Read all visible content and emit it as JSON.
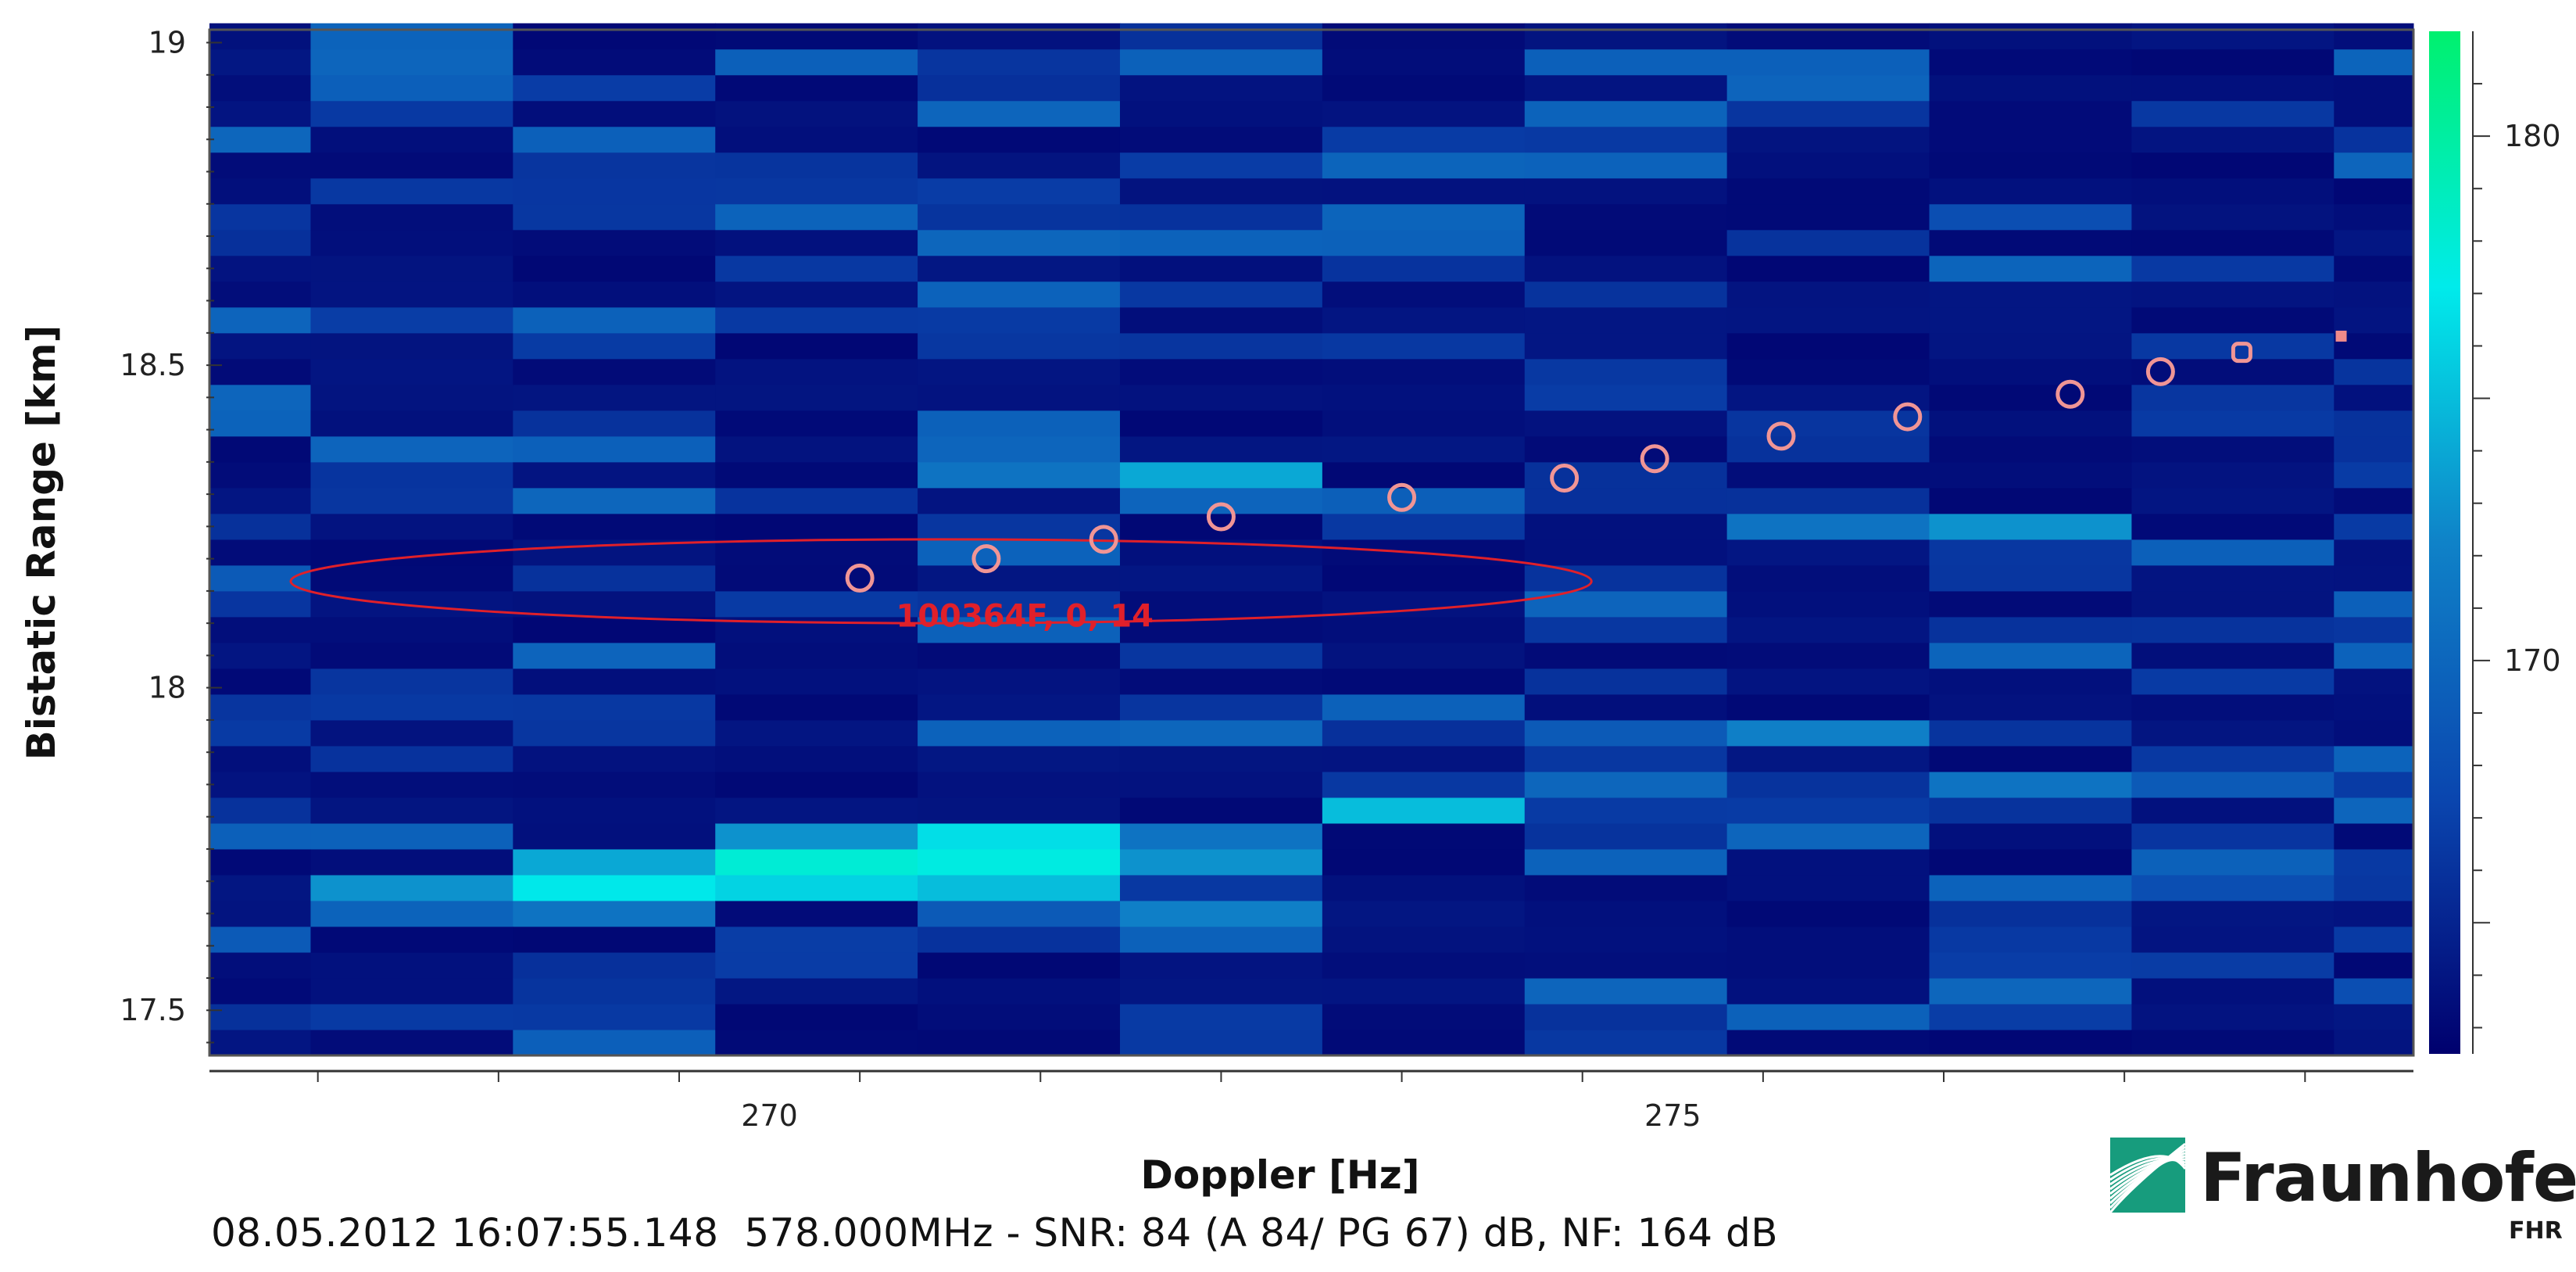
{
  "chart_data": {
    "type": "heatmap",
    "xlabel": "Doppler [Hz]",
    "ylabel": "Bistatic Range [km]",
    "xlim": [
      266.9,
      279.1
    ],
    "ylim": [
      17.43,
      19.02
    ],
    "x_ticks": [
      270,
      275
    ],
    "y_ticks": [
      17.5,
      18,
      18.5,
      19
    ],
    "colorbar": {
      "range": [
        162.5,
        182
      ],
      "ticks": [
        170,
        180
      ]
    },
    "heatmap": {
      "x_edges": [
        266.9,
        267.46,
        268.58,
        269.7,
        270.82,
        271.94,
        273.06,
        274.18,
        275.3,
        276.42,
        277.54,
        278.66,
        279.1
      ],
      "y_bin_km": 0.04,
      "y_start": 17.43,
      "row_count": 40,
      "base_level": 163,
      "hot_cells": [
        {
          "col": 3,
          "row": 7,
          "level": 178
        },
        {
          "col": 4,
          "row": 7,
          "level": 177.5
        },
        {
          "col": 3,
          "row": 6,
          "level": 176
        },
        {
          "col": 4,
          "row": 6,
          "level": 175
        },
        {
          "col": 4,
          "row": 8,
          "level": 176.5
        },
        {
          "col": 5,
          "row": 7,
          "level": 173
        },
        {
          "col": 2,
          "row": 6,
          "level": 177
        },
        {
          "col": 2,
          "row": 7,
          "level": 174
        },
        {
          "col": 1,
          "row": 6,
          "level": 173
        },
        {
          "col": 3,
          "row": 8,
          "level": 173
        },
        {
          "col": 5,
          "row": 8,
          "level": 171
        },
        {
          "col": 6,
          "row": 9,
          "level": 175
        },
        {
          "col": 2,
          "row": 5,
          "level": 171
        },
        {
          "col": 5,
          "row": 5,
          "level": 172
        },
        {
          "col": 4,
          "row": 5,
          "level": 169
        },
        {
          "col": 5,
          "row": 22,
          "level": 174
        },
        {
          "col": 4,
          "row": 22,
          "level": 171
        },
        {
          "col": 8,
          "row": 20,
          "level": 171
        },
        {
          "col": 9,
          "row": 20,
          "level": 173
        },
        {
          "col": 8,
          "row": 12,
          "level": 172
        },
        {
          "col": 9,
          "row": 10,
          "level": 171
        },
        {
          "col": 7,
          "row": 10,
          "level": 170
        },
        {
          "col": 7,
          "row": 12,
          "level": 169
        },
        {
          "col": 10,
          "row": 10,
          "level": 169
        },
        {
          "col": 9,
          "row": 32,
          "level": 168
        },
        {
          "col": 10,
          "row": 6,
          "level": 168
        },
        {
          "col": 11,
          "row": 2,
          "level": 168
        },
        {
          "col": 0,
          "row": 18,
          "level": 169
        },
        {
          "col": 0,
          "row": 4,
          "level": 169
        }
      ]
    },
    "track": {
      "label": "100364F, 0, 14",
      "points": [
        {
          "x": 270.5,
          "y": 18.17
        },
        {
          "x": 271.2,
          "y": 18.2
        },
        {
          "x": 271.85,
          "y": 18.23
        },
        {
          "x": 272.5,
          "y": 18.265
        },
        {
          "x": 273.5,
          "y": 18.295
        },
        {
          "x": 274.4,
          "y": 18.325
        },
        {
          "x": 274.9,
          "y": 18.355
        },
        {
          "x": 275.6,
          "y": 18.39
        },
        {
          "x": 276.3,
          "y": 18.42
        },
        {
          "x": 277.2,
          "y": 18.455
        },
        {
          "x": 277.7,
          "y": 18.49
        },
        {
          "x": 278.15,
          "y": 18.52
        },
        {
          "x": 278.7,
          "y": 18.545
        }
      ],
      "ellipse": {
        "cx": 270.95,
        "cy": 18.165,
        "rx": 3.6,
        "ry": 0.065
      }
    }
  },
  "footer": {
    "timestamp": "08.05.2012 16:07:55.148",
    "info": "578.000MHz - SNR: 84 (A 84/ PG 67) dB, NF: 164 dB"
  },
  "logo": {
    "name": "Fraunhofer",
    "unit": "FHR",
    "color": "#179c7d"
  }
}
